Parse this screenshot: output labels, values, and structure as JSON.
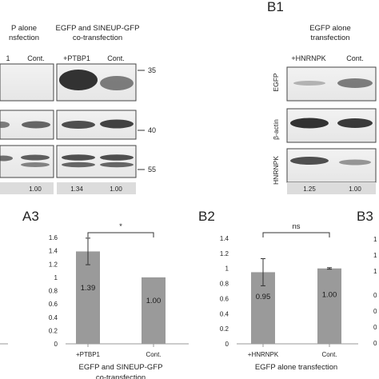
{
  "panels": {
    "a_top": {
      "header_partial_1": "P alone",
      "header_partial_2": "nsfection",
      "lanes_partial": [
        "1",
        "Cont."
      ],
      "values_partial": [
        "1.00"
      ]
    },
    "a_top_2": {
      "header_1": "EGFP and SINEUP-GFP",
      "header_2": "co-transfection",
      "lanes": [
        "+PTBP1",
        "Cont."
      ],
      "mw_markers": [
        "35",
        "40",
        "55"
      ],
      "values": [
        "1.34",
        "1.00"
      ]
    },
    "b1": {
      "label": "B1",
      "header_1": "EGFP alone",
      "header_2": "transfection",
      "lanes": [
        "+HNRNPK",
        "Cont."
      ],
      "row_labels": [
        "EGFP",
        "β-actin",
        "HNRNPK"
      ],
      "values": [
        "1.25",
        "1.00"
      ]
    },
    "a3_label": "A3",
    "b2_label": "B2",
    "b3_label": "B3"
  },
  "chart_data": [
    {
      "type": "bar",
      "panel": "A3",
      "categories": [
        "+PTBP1",
        "Cont."
      ],
      "values": [
        1.39,
        1.0
      ],
      "value_labels": [
        "1.39",
        "1.00"
      ],
      "errors": [
        0.2,
        0.0
      ],
      "ylim": [
        0,
        1.6
      ],
      "yticks": [
        "0",
        "0.2",
        "0.4",
        "0.6",
        "0.8",
        "1",
        "1.2",
        "1.4",
        "1.6"
      ],
      "xlabel_1": "EGFP and SINEUP-GFP",
      "xlabel_2": "co-transfection",
      "significance": "*",
      "bar_color": "#9a9a9a"
    },
    {
      "type": "bar",
      "panel": "B2",
      "categories": [
        "+HNRNPK",
        "Cont."
      ],
      "values": [
        0.95,
        1.0
      ],
      "value_labels": [
        "0.95",
        "1.00"
      ],
      "errors": [
        0.18,
        0.01
      ],
      "ylim": [
        0,
        1.4
      ],
      "yticks": [
        "0",
        "0.2",
        "0.4",
        "0.6",
        "0.8",
        "1",
        "1.2",
        "1.4"
      ],
      "xlabel_1": "EGFP alone transfection",
      "significance": "ns",
      "bar_color": "#9a9a9a"
    }
  ]
}
